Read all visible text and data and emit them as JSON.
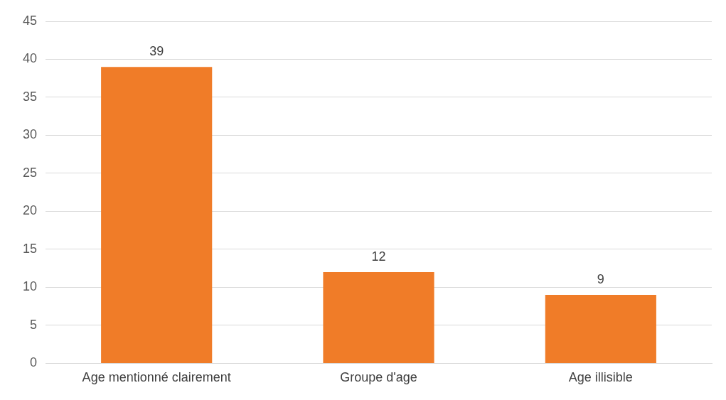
{
  "chart_data": {
    "type": "bar",
    "categories": [
      "Age mentionné clairement",
      "Groupe d'age",
      "Age illisible"
    ],
    "values": [
      39,
      12,
      9
    ],
    "color": "#f07c28",
    "ylim": [
      0,
      45
    ],
    "yticks": [
      0,
      5,
      10,
      15,
      20,
      25,
      30,
      35,
      40,
      45
    ],
    "grid": "y",
    "data_labels": true,
    "legend": false
  }
}
